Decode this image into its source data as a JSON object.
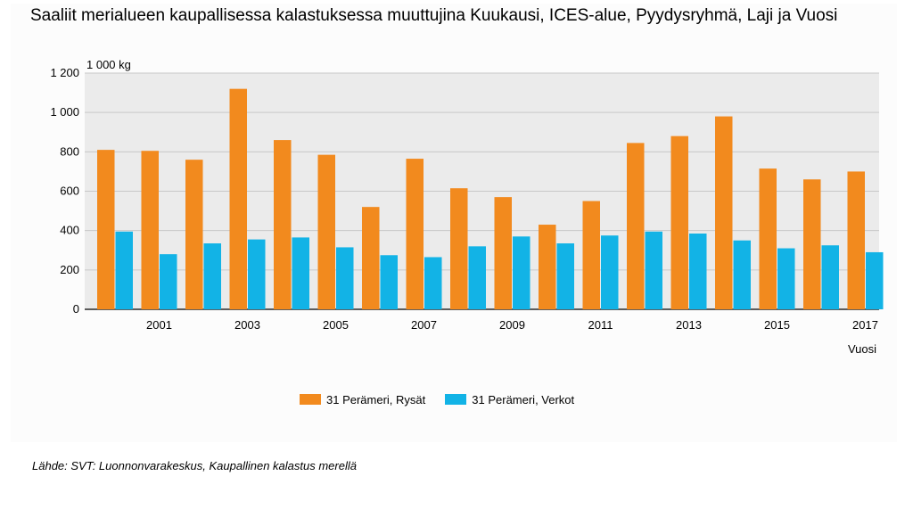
{
  "title": "Saaliit merialueen kaupallisessa kalastuksessa muuttujina Kuukausi, ICES-alue, Pyydysryhmä, Laji ja Vuosi",
  "source": "Lähde: SVT: Luonnonvarakeskus, Kaupallinen kalastus merellä",
  "chart_data": {
    "type": "bar",
    "title": "Saaliit merialueen kaupallisessa kalastuksessa muuttujina Kuukausi, ICES-alue, Pyydysryhmä, Laji ja Vuosi",
    "unit_label": "1 000 kg",
    "xlabel": "Vuosi",
    "ylabel": "",
    "categories": [
      "2000",
      "2001",
      "2002",
      "2003",
      "2004",
      "2005",
      "2006",
      "2007",
      "2008",
      "2009",
      "2010",
      "2011",
      "2012",
      "2013",
      "2014",
      "2015",
      "2016",
      "2017"
    ],
    "x_tick_labels": [
      "2001",
      "2003",
      "2005",
      "2007",
      "2009",
      "2011",
      "2013",
      "2015",
      "2017"
    ],
    "y_ticks": [
      "0",
      "200",
      "400",
      "600",
      "800",
      "1 000",
      "1 200"
    ],
    "ylim": [
      0,
      1200
    ],
    "grid": true,
    "legend_position": "bottom",
    "series": [
      {
        "name": "31 Perämeri, Rysät",
        "color": "#f28a1e",
        "values": [
          810,
          805,
          760,
          1120,
          860,
          785,
          520,
          765,
          615,
          570,
          430,
          550,
          845,
          880,
          980,
          715,
          660,
          700
        ]
      },
      {
        "name": "31 Perämeri, Verkot",
        "color": "#12b3e6",
        "values": [
          395,
          280,
          335,
          355,
          365,
          315,
          275,
          265,
          320,
          370,
          335,
          375,
          395,
          385,
          350,
          310,
          325,
          290
        ]
      }
    ]
  }
}
